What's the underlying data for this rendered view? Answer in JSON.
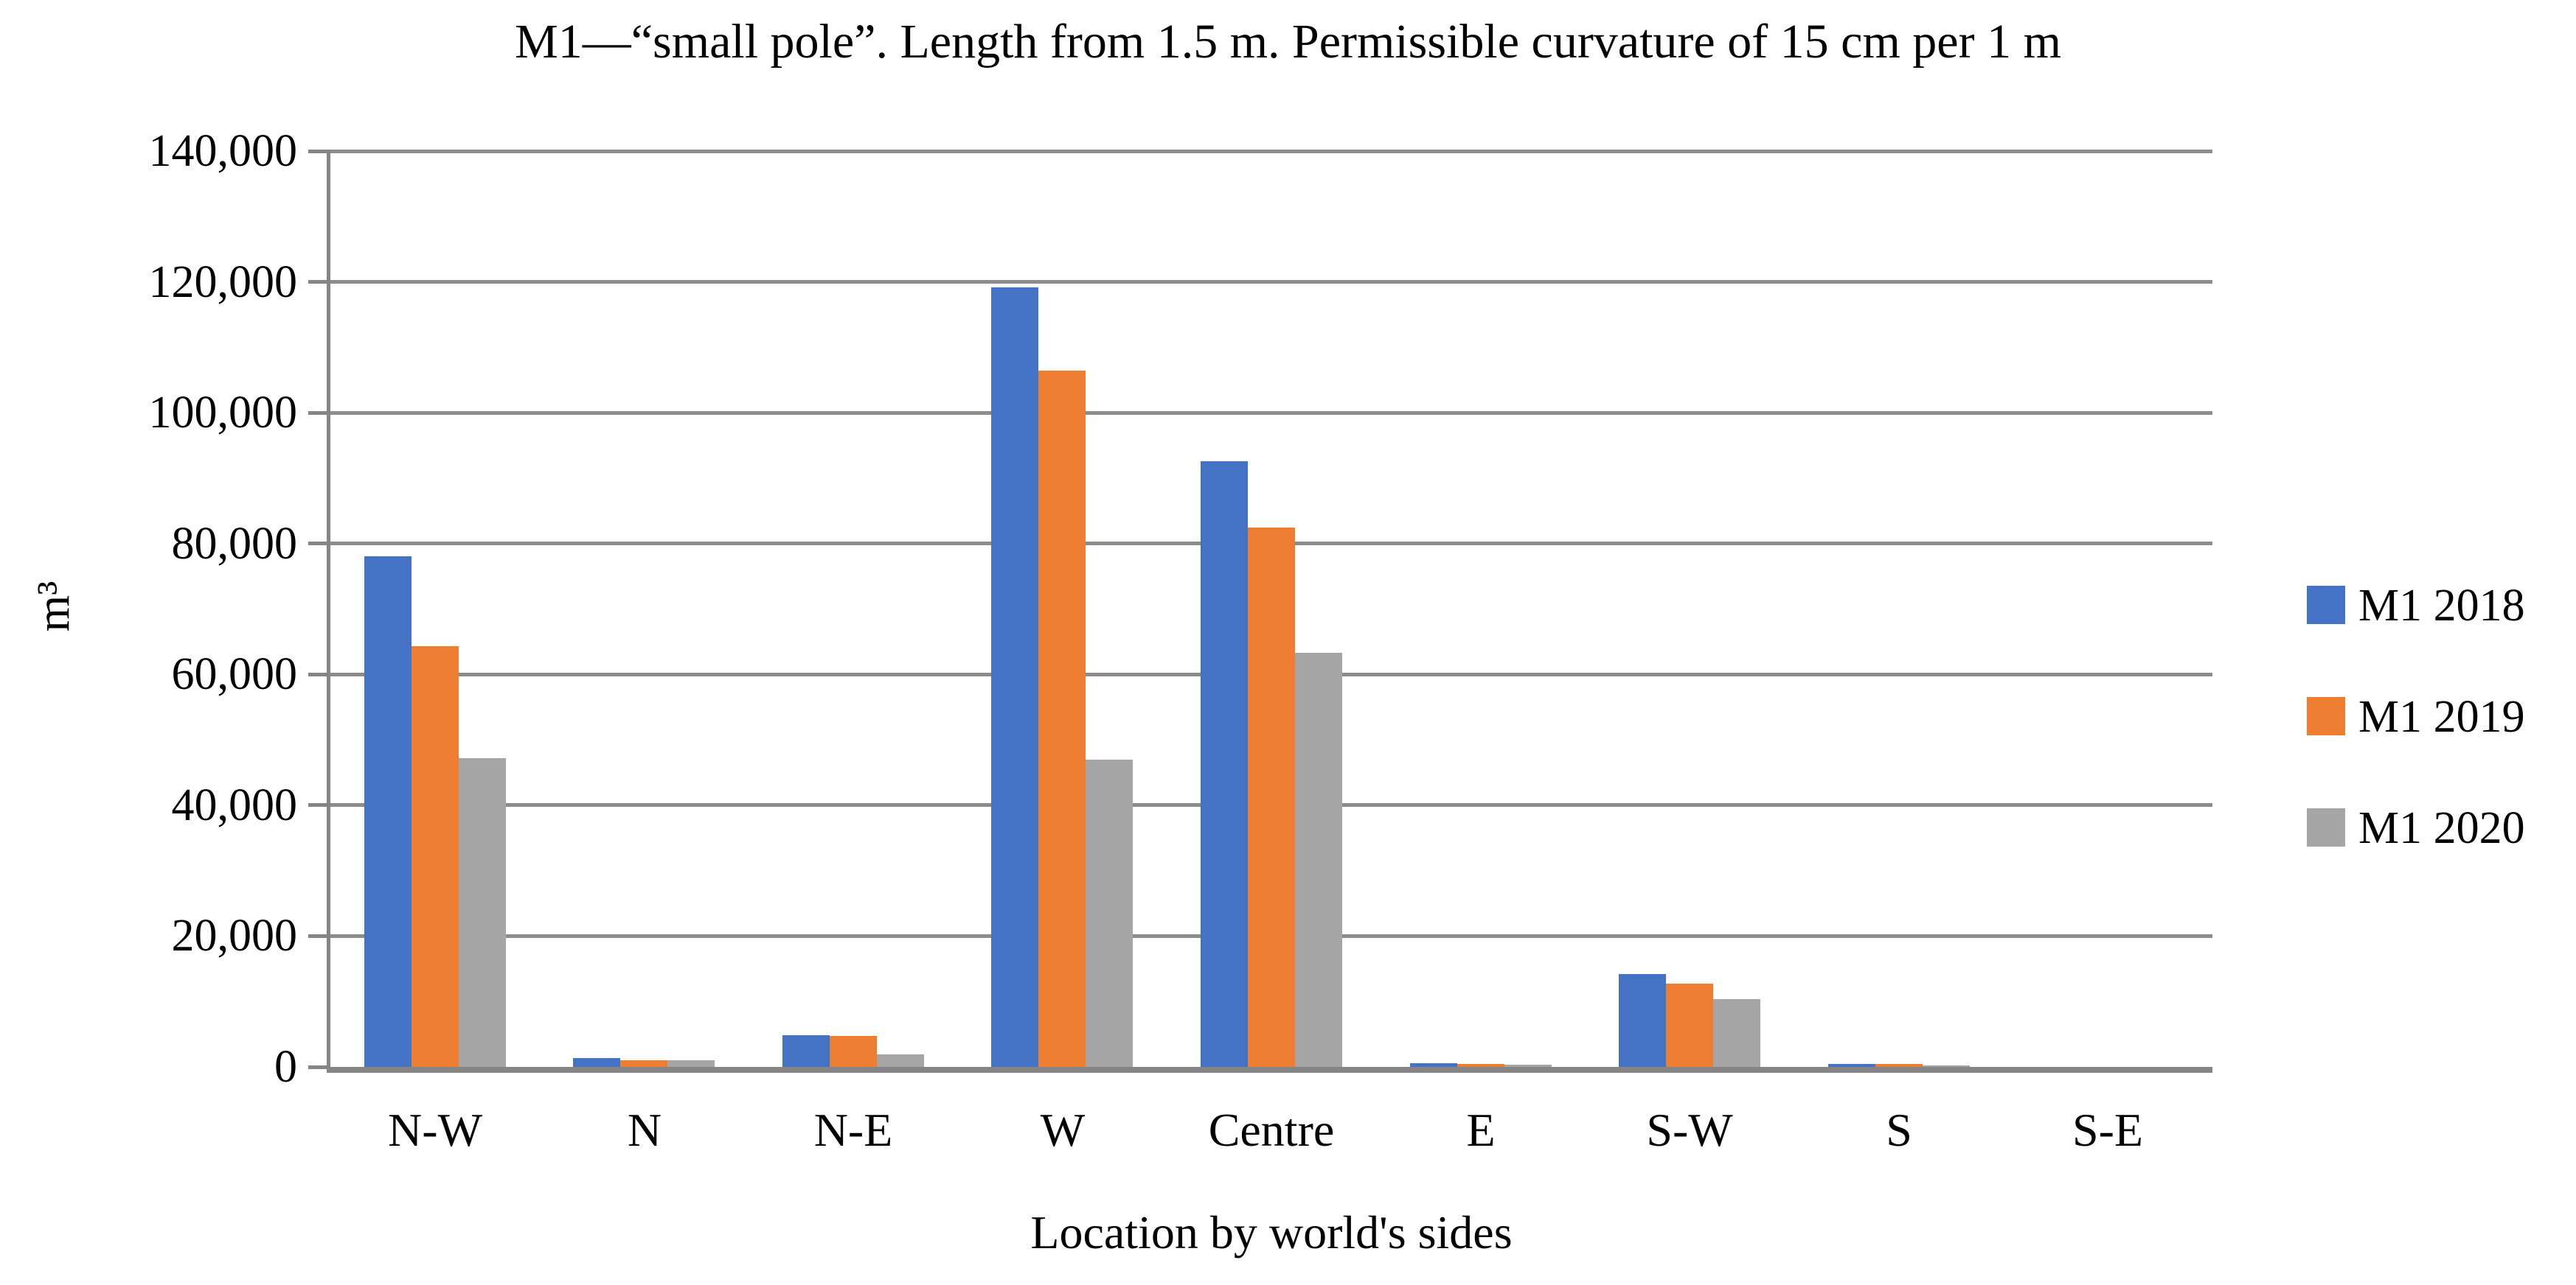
{
  "chart": {
    "title": "M1—“small pole”. Length from 1.5 m. Permissible curvature of 15 cm per 1 m"
  },
  "chart_data": {
    "type": "bar",
    "title": "M1—“small pole”. Length from 1.5 m. Permissible curvature of 15 cm per 1 m",
    "xlabel": "Location by world's sides",
    "ylabel": "m³",
    "categories": [
      "N-W",
      "N",
      "N-E",
      "W",
      "Centre",
      "E",
      "S-W",
      "S",
      "S-E"
    ],
    "series": [
      {
        "name": "M1 2018",
        "color": "#4472C4",
        "values": [
          78000,
          1300,
          4800,
          119200,
          92600,
          600,
          14200,
          400,
          0
        ]
      },
      {
        "name": "M1 2019",
        "color": "#ED7D31",
        "values": [
          64300,
          1000,
          4700,
          106400,
          82500,
          400,
          12700,
          400,
          0
        ]
      },
      {
        "name": "M1 2020",
        "color": "#A5A5A5",
        "values": [
          47200,
          1000,
          1900,
          47000,
          63300,
          300,
          10400,
          200,
          0
        ]
      }
    ],
    "ylim": [
      0,
      140000
    ],
    "ytick_step": 20000,
    "ytick_labels_top_to_bottom": [
      "140,000",
      "120,000",
      "100,000",
      "80,000",
      "60,000",
      "40,000",
      "20,000",
      "0"
    ],
    "grid": true,
    "legend_position": "right",
    "gridline_color": "#8C8C8C",
    "axis_color": "#858585"
  }
}
